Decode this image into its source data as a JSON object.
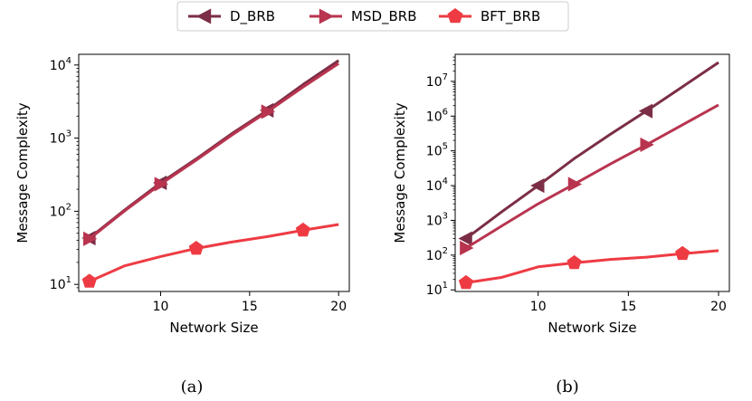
{
  "legend": {
    "placement": "top-center",
    "entries": [
      {
        "name": "D_BRB",
        "marker": "triangle-left",
        "color": "#7B2E45"
      },
      {
        "name": "MSD_BRB",
        "marker": "triangle-right",
        "color": "#B8344F"
      },
      {
        "name": "BFT_BRB",
        "marker": "pentagon",
        "color": "#EE3B43"
      }
    ]
  },
  "chart_data": [
    {
      "type": "line",
      "caption": "(a)",
      "xlabel": "Network Size",
      "ylabel": "Message Complexity",
      "yscale": "log",
      "xlim": [
        5.4,
        20.6
      ],
      "ylim": [
        8,
        14000
      ],
      "xticks": [
        10,
        15,
        20
      ],
      "yticks": [
        {
          "value": 10,
          "base": "10",
          "exp": "1"
        },
        {
          "value": 100,
          "base": "10",
          "exp": "2"
        },
        {
          "value": 1000,
          "base": "10",
          "exp": "3"
        },
        {
          "value": 10000,
          "base": "10",
          "exp": "4"
        }
      ],
      "grid": false,
      "x": [
        6,
        8,
        10,
        12,
        14,
        16,
        18,
        20
      ],
      "series": [
        {
          "name": "D_BRB",
          "color": "#7B2E45",
          "marker": "triangle-left",
          "values": [
            43,
            105,
            245,
            520,
            1150,
            2400,
            5400,
            11500
          ],
          "marker_x": [
            6,
            10,
            16
          ],
          "marker_y": [
            43,
            245,
            2400
          ]
        },
        {
          "name": "MSD_BRB",
          "color": "#B8344F",
          "marker": "triangle-right",
          "values": [
            42,
            102,
            235,
            500,
            1100,
            2300,
            5000,
            10500
          ],
          "marker_x": [
            6,
            10,
            16
          ],
          "marker_y": [
            42,
            235,
            2300
          ]
        },
        {
          "name": "BFT_BRB",
          "color": "#EE3B43",
          "marker": "pentagon",
          "values": [
            11,
            18,
            24,
            31,
            38,
            45,
            55,
            66
          ],
          "marker_x": [
            6,
            12,
            18
          ],
          "marker_y": [
            11,
            31,
            55
          ]
        }
      ]
    },
    {
      "type": "line",
      "caption": "(b)",
      "xlabel": "Network Size",
      "ylabel": "Message Complexity",
      "yscale": "log",
      "xlim": [
        5.4,
        20.6
      ],
      "ylim": [
        9,
        60000000
      ],
      "xticks": [
        10,
        15,
        20
      ],
      "yticks": [
        {
          "value": 10,
          "base": "10",
          "exp": "1"
        },
        {
          "value": 100,
          "base": "10",
          "exp": "2"
        },
        {
          "value": 1000,
          "base": "10",
          "exp": "3"
        },
        {
          "value": 10000,
          "base": "10",
          "exp": "4"
        },
        {
          "value": 100000,
          "base": "10",
          "exp": "5"
        },
        {
          "value": 1000000,
          "base": "10",
          "exp": "6"
        },
        {
          "value": 10000000,
          "base": "10",
          "exp": "7"
        }
      ],
      "grid": false,
      "x": [
        6,
        8,
        10,
        12,
        14,
        16,
        18,
        20
      ],
      "series": [
        {
          "name": "D_BRB",
          "color": "#7B2E45",
          "marker": "triangle-left",
          "values": [
            300,
            1800,
            10000,
            60000,
            300000,
            1400000,
            7000000,
            35000000
          ],
          "marker_x": [
            6,
            10,
            16
          ],
          "marker_y": [
            300,
            10000,
            1400000
          ]
        },
        {
          "name": "MSD_BRB",
          "color": "#B8344F",
          "marker": "triangle-right",
          "values": [
            160,
            700,
            3000,
            11000,
            42000,
            150000,
            560000,
            2100000
          ],
          "marker_x": [
            6,
            12,
            16
          ],
          "marker_y": [
            160,
            11000,
            150000
          ]
        },
        {
          "name": "BFT_BRB",
          "color": "#EE3B43",
          "marker": "pentagon",
          "values": [
            16,
            23,
            46,
            60,
            75,
            87,
            110,
            135
          ],
          "marker_x": [
            6,
            12,
            18
          ],
          "marker_y": [
            16,
            60,
            110
          ]
        }
      ]
    }
  ]
}
